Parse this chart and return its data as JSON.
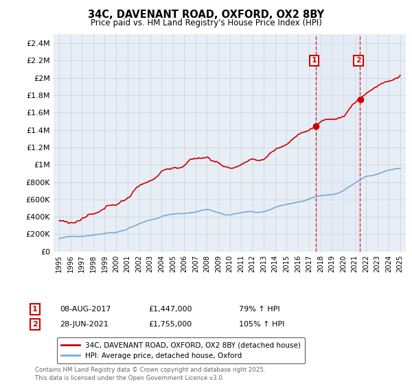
{
  "title": "34C, DAVENANT ROAD, OXFORD, OX2 8BY",
  "subtitle": "Price paid vs. HM Land Registry's House Price Index (HPI)",
  "legend_label_red": "34C, DAVENANT ROAD, OXFORD, OX2 8BY (detached house)",
  "legend_label_blue": "HPI: Average price, detached house, Oxford",
  "annotation1_label": "1",
  "annotation1_date": "08-AUG-2017",
  "annotation1_price": "£1,447,000",
  "annotation1_hpi": "79% ↑ HPI",
  "annotation1_year": 2017.58,
  "annotation1_value": 1447000,
  "annotation2_label": "2",
  "annotation2_date": "28-JUN-2021",
  "annotation2_price": "£1,755,000",
  "annotation2_hpi": "105% ↑ HPI",
  "annotation2_year": 2021.48,
  "annotation2_value": 1755000,
  "ylabel_ticks": [
    "£0",
    "£200K",
    "£400K",
    "£600K",
    "£800K",
    "£1M",
    "£1.2M",
    "£1.4M",
    "£1.6M",
    "£1.8M",
    "£2M",
    "£2.2M",
    "£2.4M"
  ],
  "ytick_values": [
    0,
    200000,
    400000,
    600000,
    800000,
    1000000,
    1200000,
    1400000,
    1600000,
    1800000,
    2000000,
    2200000,
    2400000
  ],
  "ylim": [
    0,
    2500000
  ],
  "xlim_start": 1994.5,
  "xlim_end": 2025.5,
  "background_color": "#ffffff",
  "chart_bg_color": "#e8eef5",
  "grid_color": "#c8d4e0",
  "red_color": "#cc0000",
  "blue_color": "#7aa8d2",
  "annotation_box_color": "#cc0000",
  "annotation_vline_color": "#cc0000",
  "annotation_fill_color": "#dde8f5",
  "footnote": "Contains HM Land Registry data © Crown copyright and database right 2025.\nThis data is licensed under the Open Government Licence v3.0."
}
